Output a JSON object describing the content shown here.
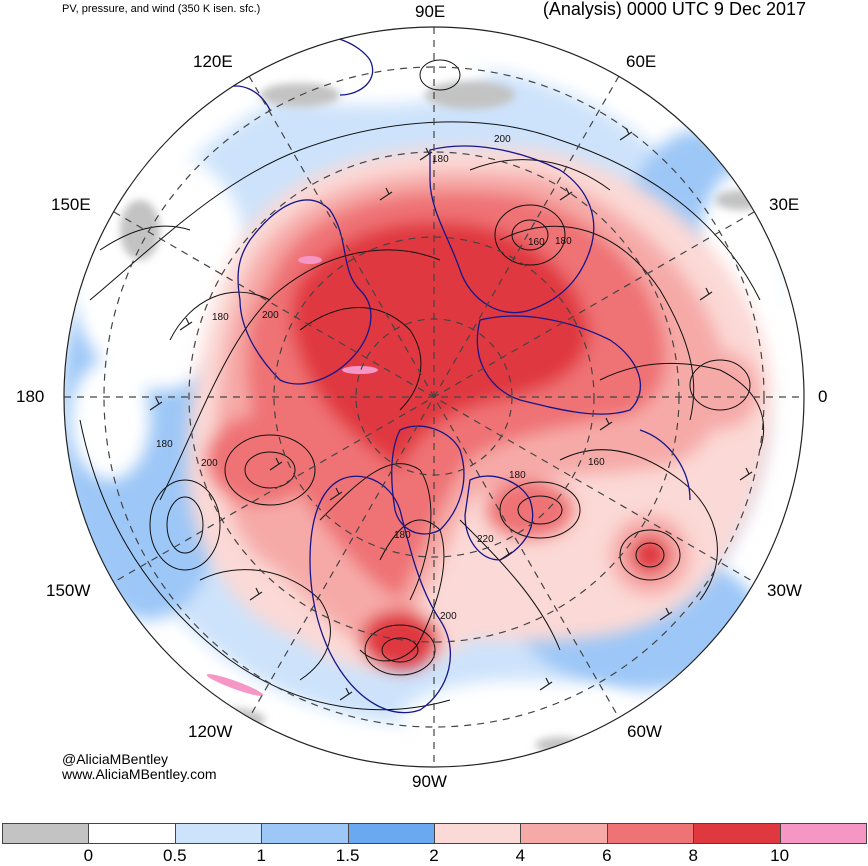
{
  "header": {
    "title_left": "PV, pressure, and wind (350 K isen. sfc.)",
    "title_right": "(Analysis) 0000 UTC 9 Dec 2017"
  },
  "longitude_labels": {
    "lon_90E": "90E",
    "lon_60E": "60E",
    "lon_30E": "30E",
    "lon_0": "0",
    "lon_30W": "30W",
    "lon_60W": "60W",
    "lon_90W": "90W",
    "lon_120W": "120W",
    "lon_150W": "150W",
    "lon_180": "180",
    "lon_150E": "150E",
    "lon_120E": "120E"
  },
  "contour_labels": [
    "200",
    "180",
    "160",
    "180",
    "200",
    "200",
    "180",
    "180",
    "220",
    "200",
    "180",
    "160",
    "180"
  ],
  "credit": {
    "handle": "@AliciaMBentley",
    "website": "www.AliciaMBentley.com"
  },
  "colorbar": {
    "colors": [
      "#c3c3c3",
      "#ffffff",
      "#cde3fb",
      "#9dc7f7",
      "#6aa8f1",
      "#fbd9d6",
      "#f6aaa8",
      "#ef7275",
      "#e0383f",
      "#f596c4"
    ],
    "tick_labels": [
      "0",
      "0.5",
      "1",
      "1.5",
      "2",
      "4",
      "6",
      "8",
      "10"
    ]
  }
}
